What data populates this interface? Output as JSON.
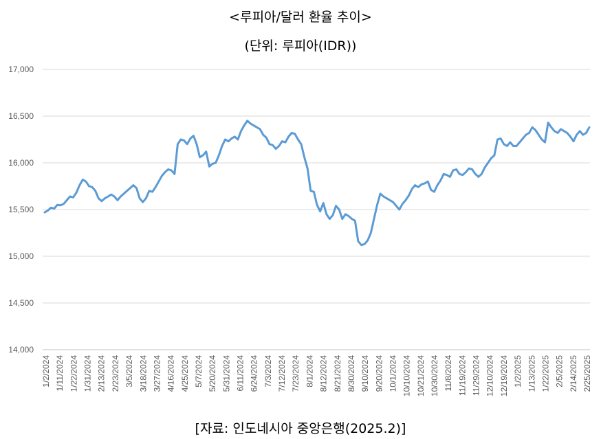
{
  "title": "<루피아/달러 환율 추이>",
  "subtitle": "(단위: 루피아(IDR))",
  "source": "[자료: 인도네시아 중앙은행(2025.2)]",
  "colors": {
    "line": "#5b9bd5",
    "grid": "#d9d9d9",
    "axis": "#bfbfbf",
    "tick_text": "#595959"
  },
  "chart_data": {
    "type": "line",
    "title": "<루피아/달러 환율 추이>",
    "subtitle": "(단위: 루피아(IDR))",
    "xlabel": "",
    "ylabel": "",
    "ylim": [
      14000,
      17000
    ],
    "yticks": [
      14000,
      14500,
      15000,
      15500,
      16000,
      16500,
      17000
    ],
    "ytick_labels": [
      "14,000",
      "14,500",
      "15,000",
      "15,500",
      "16,000",
      "16,500",
      "17,000"
    ],
    "xtick_labels": [
      "1/2/2024",
      "1/11/2024",
      "1/22/2024",
      "1/31/2024",
      "2/13/2024",
      "2/23/2024",
      "3/5/2024",
      "3/18/2024",
      "3/27/2024",
      "4/16/2024",
      "4/25/2024",
      "5/7/2024",
      "5/20/2024",
      "5/31/2024",
      "6/11/2024",
      "6/24/2024",
      "7/3/2024",
      "7/12/2024",
      "7/23/2024",
      "8/1/2024",
      "8/12/2024",
      "8/21/2024",
      "8/30/2024",
      "9/10/2024",
      "9/20/2024",
      "10/1/2024",
      "10/10/2024",
      "10/21/2024",
      "10/30/2024",
      "11/8/2024",
      "11/19/2024",
      "11/29/2024",
      "12/10/2024",
      "12/19/2024",
      "1/2/2025",
      "1/13/2025",
      "1/22/2025",
      "2/5/2025",
      "2/14/2025",
      "2/25/2025"
    ],
    "grid": true,
    "legend": "none",
    "series": [
      {
        "values": [
          15470,
          15490,
          15520,
          15510,
          15550,
          15545,
          15560,
          15600,
          15640,
          15630,
          15680,
          15760,
          15820,
          15800,
          15750,
          15740,
          15700,
          15620,
          15590,
          15620,
          15640,
          15660,
          15640,
          15600,
          15640,
          15670,
          15700,
          15730,
          15760,
          15730,
          15620,
          15580,
          15620,
          15700,
          15690,
          15740,
          15800,
          15860,
          15900,
          15930,
          15920,
          15880,
          16200,
          16250,
          16240,
          16200,
          16260,
          16290,
          16200,
          16060,
          16080,
          16120,
          15960,
          15990,
          16000,
          16080,
          16180,
          16250,
          16230,
          16260,
          16280,
          16250,
          16340,
          16400,
          16450,
          16420,
          16400,
          16380,
          16360,
          16300,
          16270,
          16200,
          16190,
          16150,
          16180,
          16230,
          16220,
          16280,
          16320,
          16310,
          16250,
          16200,
          16060,
          15940,
          15700,
          15690,
          15550,
          15480,
          15570,
          15450,
          15400,
          15440,
          15540,
          15500,
          15400,
          15450,
          15430,
          15400,
          15380,
          15160,
          15120,
          15130,
          15170,
          15250,
          15400,
          15550,
          15670,
          15640,
          15620,
          15600,
          15580,
          15540,
          15500,
          15560,
          15600,
          15650,
          15720,
          15760,
          15740,
          15770,
          15780,
          15800,
          15710,
          15690,
          15760,
          15810,
          15880,
          15870,
          15850,
          15920,
          15930,
          15880,
          15870,
          15900,
          15940,
          15930,
          15880,
          15850,
          15880,
          15950,
          16000,
          16050,
          16080,
          16250,
          16260,
          16200,
          16180,
          16220,
          16180,
          16180,
          16220,
          16260,
          16300,
          16320,
          16380,
          16350,
          16300,
          16250,
          16220,
          16430,
          16380,
          16340,
          16320,
          16360,
          16340,
          16320,
          16280,
          16230,
          16300,
          16340,
          16300,
          16320,
          16380
        ]
      }
    ]
  }
}
